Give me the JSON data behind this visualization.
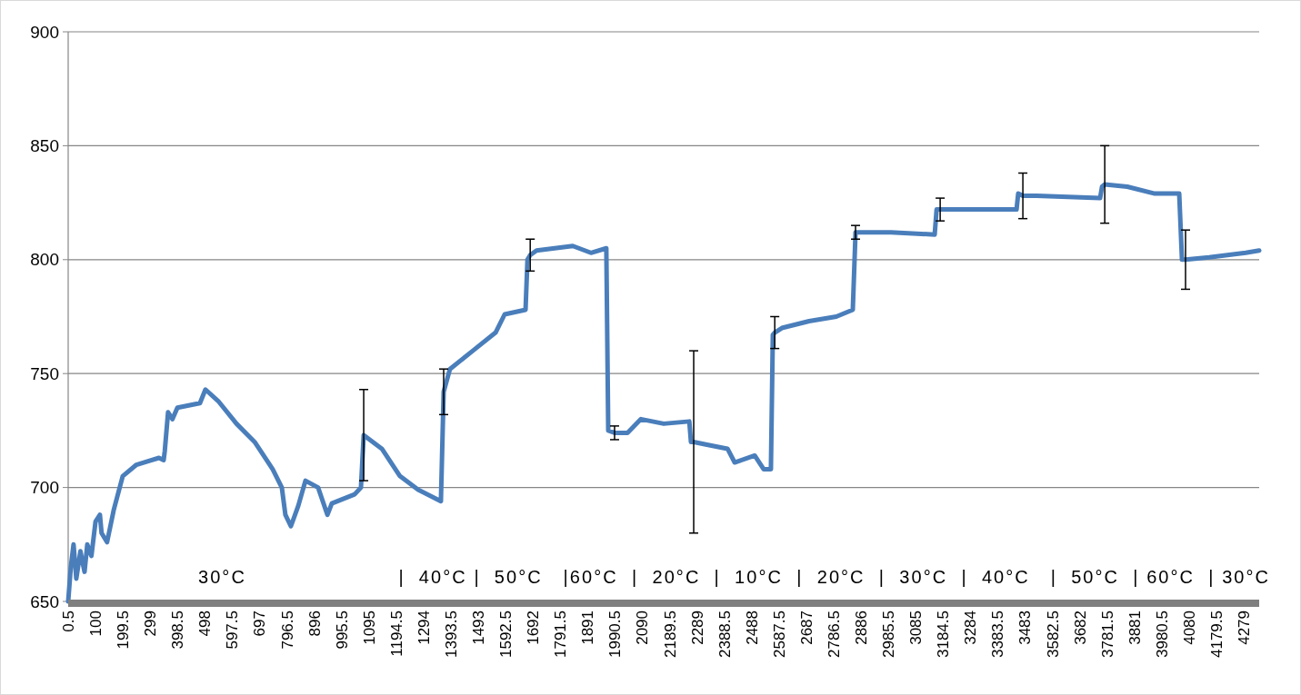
{
  "chart_data": {
    "type": "line",
    "xlim": [
      0.5,
      4335
    ],
    "ylim": [
      650,
      900
    ],
    "yticks": [
      650,
      700,
      750,
      800,
      850,
      900
    ],
    "xticks": [
      0.5,
      100,
      199.5,
      299,
      398.5,
      498,
      597.5,
      697,
      796.5,
      896,
      995.5,
      1095,
      1194.5,
      1294,
      1393.5,
      1493,
      1592.5,
      1692,
      1791.5,
      1891,
      1990.5,
      2090,
      2189.5,
      2289,
      2388.5,
      2488,
      2587.5,
      2687,
      2786.5,
      2886,
      2985.5,
      3085,
      3184.5,
      3284,
      3383.5,
      3483,
      3582.5,
      3682,
      3781.5,
      3881,
      3980.5,
      4080,
      4179.5,
      4279
    ],
    "grid": "y",
    "marker": "none",
    "line_style": "solid",
    "series": [
      {
        "color": "#4a7ebb",
        "x": [
          0.5,
          10,
          20,
          30,
          45,
          60,
          70,
          85,
          100,
          116,
          122,
          142,
          166,
          199,
          249,
          331,
          348,
          352,
          364,
          380,
          398,
          480,
          500,
          546,
          613,
          679,
          745,
          778,
          791,
          811,
          838,
          864,
          910,
          944,
          960,
          1043,
          1066,
          1076,
          1142,
          1208,
          1274,
          1357,
          1367,
          1390,
          1473,
          1556,
          1589,
          1665,
          1672,
          1682,
          1705,
          1837,
          1903,
          1959,
          1966,
          1989,
          2036,
          2085,
          2168,
          2261,
          2267,
          2277,
          2317,
          2400,
          2426,
          2499,
          2532,
          2558,
          2565,
          2572,
          2598,
          2697,
          2796,
          2856,
          2866,
          2995,
          3154,
          3161,
          3174,
          3326,
          3452,
          3458,
          3475,
          3525,
          3756,
          3763,
          3773,
          3855,
          3955,
          4044,
          4054,
          4067,
          4153,
          4286,
          4335
        ],
        "values": [
          650,
          665,
          675,
          660,
          672,
          663,
          675,
          670,
          685,
          688,
          680,
          676,
          690,
          705,
          710,
          713,
          712,
          716,
          733,
          730,
          735,
          737,
          743,
          738,
          728,
          720,
          708,
          700,
          688,
          683,
          692,
          703,
          700,
          688,
          693,
          697,
          700,
          723,
          717,
          705,
          699,
          694,
          742,
          752,
          760,
          768,
          776,
          778,
          800,
          802,
          804,
          806,
          803,
          805,
          725,
          724,
          724,
          730,
          728,
          729,
          720,
          720,
          719,
          717,
          711,
          714,
          708,
          708,
          767,
          768,
          770,
          773,
          775,
          778,
          812,
          812,
          811,
          822,
          822,
          822,
          822,
          829,
          828,
          828,
          827,
          832,
          833,
          832,
          829,
          829,
          800,
          800,
          801,
          803,
          804
        ],
        "errors": [
          null,
          null,
          null,
          null,
          null,
          null,
          null,
          null,
          null,
          null,
          null,
          null,
          null,
          null,
          null,
          null,
          null,
          null,
          null,
          null,
          null,
          null,
          null,
          null,
          null,
          null,
          null,
          null,
          null,
          null,
          null,
          null,
          null,
          null,
          null,
          null,
          null,
          20,
          null,
          null,
          null,
          null,
          10,
          null,
          null,
          null,
          null,
          null,
          null,
          7,
          null,
          null,
          null,
          null,
          null,
          3,
          null,
          null,
          null,
          null,
          null,
          40,
          null,
          null,
          null,
          null,
          null,
          null,
          null,
          7,
          null,
          null,
          null,
          null,
          3,
          null,
          null,
          null,
          5,
          null,
          null,
          null,
          10,
          null,
          null,
          null,
          17,
          null,
          null,
          null,
          null,
          13,
          null,
          null,
          null
        ]
      }
    ],
    "annotations": [
      "30°C                      |  40°C |  50°C   |60°C  |  20°C  |  10°C  |  20°C  |  30°C  |  40°C   |  50°C  | 60°C  | 30°C"
    ]
  }
}
